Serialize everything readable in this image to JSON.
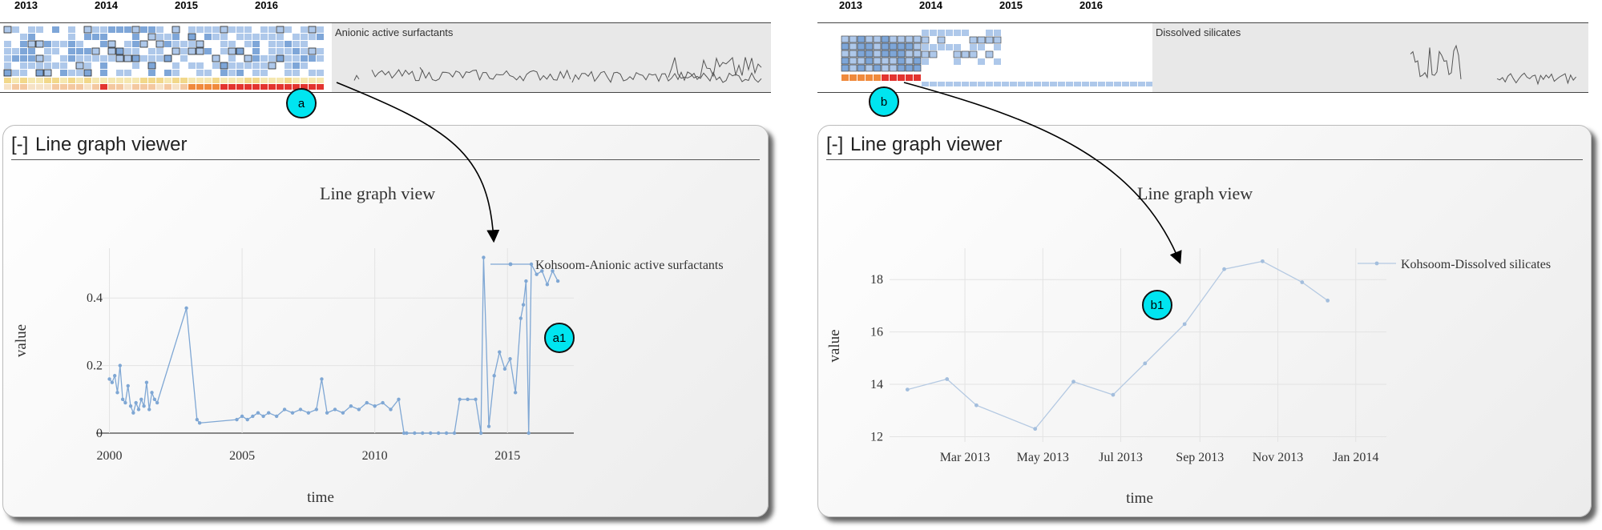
{
  "left": {
    "years": [
      "2013",
      "2014",
      "2015",
      "2016"
    ],
    "overview_title": "Anionic active surfactants",
    "marker": "a",
    "plot_marker": "a1",
    "viewer": {
      "toggle": "[-]",
      "title": "Line graph viewer"
    },
    "view_title": "Line graph view"
  },
  "right": {
    "years": [
      "2013",
      "2014",
      "2015",
      "2016"
    ],
    "overview_title": "Dissolved silicates",
    "marker": "b",
    "plot_marker": "b1",
    "viewer": {
      "toggle": "[-]",
      "title": "Line graph viewer"
    },
    "view_title": "Line graph view"
  },
  "colors": {
    "line": "#7fa7d4",
    "cyan": "#00e5f0",
    "heat_blue": "#aec8ea",
    "heat_dark": "#7ea6d8",
    "heat_red": "#e3342f",
    "heat_orange": "#f08a3c"
  },
  "chart_data": [
    {
      "type": "line",
      "title": "Line graph view",
      "xlabel": "time",
      "ylabel": "value",
      "x_ticks": [
        "2000",
        "2005",
        "2010",
        "2015"
      ],
      "y_ticks": [
        "0",
        "0.2",
        "0.4"
      ],
      "xlim": [
        1999.5,
        2017.5
      ],
      "ylim": [
        0,
        0.5
      ],
      "series": [
        {
          "name": "Kohsoom-Anionic active surfactants",
          "x": [
            2000.0,
            2000.1,
            2000.2,
            2000.3,
            2000.4,
            2000.5,
            2000.6,
            2000.7,
            2000.8,
            2000.9,
            2001.0,
            2001.1,
            2001.2,
            2001.3,
            2001.4,
            2001.5,
            2001.6,
            2001.7,
            2001.8,
            2002.9,
            2003.3,
            2003.4,
            2004.8,
            2005.0,
            2005.2,
            2005.4,
            2005.6,
            2005.8,
            2006.0,
            2006.3,
            2006.6,
            2006.9,
            2007.2,
            2007.5,
            2007.8,
            2008.0,
            2008.2,
            2008.5,
            2008.8,
            2009.1,
            2009.4,
            2009.7,
            2010.0,
            2010.3,
            2010.6,
            2010.9,
            2011.1,
            2011.2,
            2011.5,
            2011.8,
            2012.1,
            2012.4,
            2012.7,
            2013.0,
            2013.2,
            2013.5,
            2013.8,
            2014.0,
            2014.1,
            2014.3,
            2014.5,
            2014.7,
            2014.9,
            2015.1,
            2015.3,
            2015.5,
            2015.6,
            2015.7,
            2015.8,
            2015.9,
            2016.1,
            2016.3,
            2016.5,
            2016.7,
            2016.9
          ],
          "values": [
            0.16,
            0.15,
            0.17,
            0.12,
            0.2,
            0.1,
            0.09,
            0.14,
            0.08,
            0.06,
            0.09,
            0.07,
            0.1,
            0.08,
            0.15,
            0.07,
            0.12,
            0.1,
            0.09,
            0.37,
            0.04,
            0.03,
            0.04,
            0.05,
            0.04,
            0.05,
            0.06,
            0.05,
            0.06,
            0.05,
            0.07,
            0.06,
            0.07,
            0.06,
            0.07,
            0.16,
            0.06,
            0.07,
            0.06,
            0.08,
            0.07,
            0.09,
            0.08,
            0.09,
            0.07,
            0.1,
            0.0,
            0.0,
            0.0,
            0.0,
            0.0,
            0.0,
            0.0,
            0.0,
            0.1,
            0.1,
            0.1,
            0.0,
            0.52,
            0.02,
            0.17,
            0.24,
            0.19,
            0.22,
            0.12,
            0.34,
            0.38,
            0.45,
            0.0,
            0.5,
            0.47,
            0.48,
            0.44,
            0.48,
            0.45
          ]
        }
      ]
    },
    {
      "type": "line",
      "title": "Line graph view",
      "xlabel": "time",
      "ylabel": "value",
      "x_ticks": [
        "Mar 2013",
        "May 2013",
        "Jul 2013",
        "Sep 2013",
        "Nov 2013",
        "Jan 2014"
      ],
      "y_ticks": [
        "12",
        "14",
        "16",
        "18"
      ],
      "ylim": [
        11.8,
        19.2
      ],
      "series": [
        {
          "name": "Kohsoom-Dissolved silicates",
          "x": [
            "2013-01-15",
            "2013-02-15",
            "2013-03-10",
            "2013-04-25",
            "2013-05-25",
            "2013-06-25",
            "2013-07-20",
            "2013-08-20",
            "2013-09-20",
            "2013-10-20",
            "2013-11-20",
            "2013-12-10"
          ],
          "values": [
            13.8,
            14.2,
            13.2,
            12.3,
            14.1,
            13.6,
            14.8,
            16.3,
            18.4,
            18.7,
            17.9,
            17.2
          ]
        }
      ]
    }
  ]
}
